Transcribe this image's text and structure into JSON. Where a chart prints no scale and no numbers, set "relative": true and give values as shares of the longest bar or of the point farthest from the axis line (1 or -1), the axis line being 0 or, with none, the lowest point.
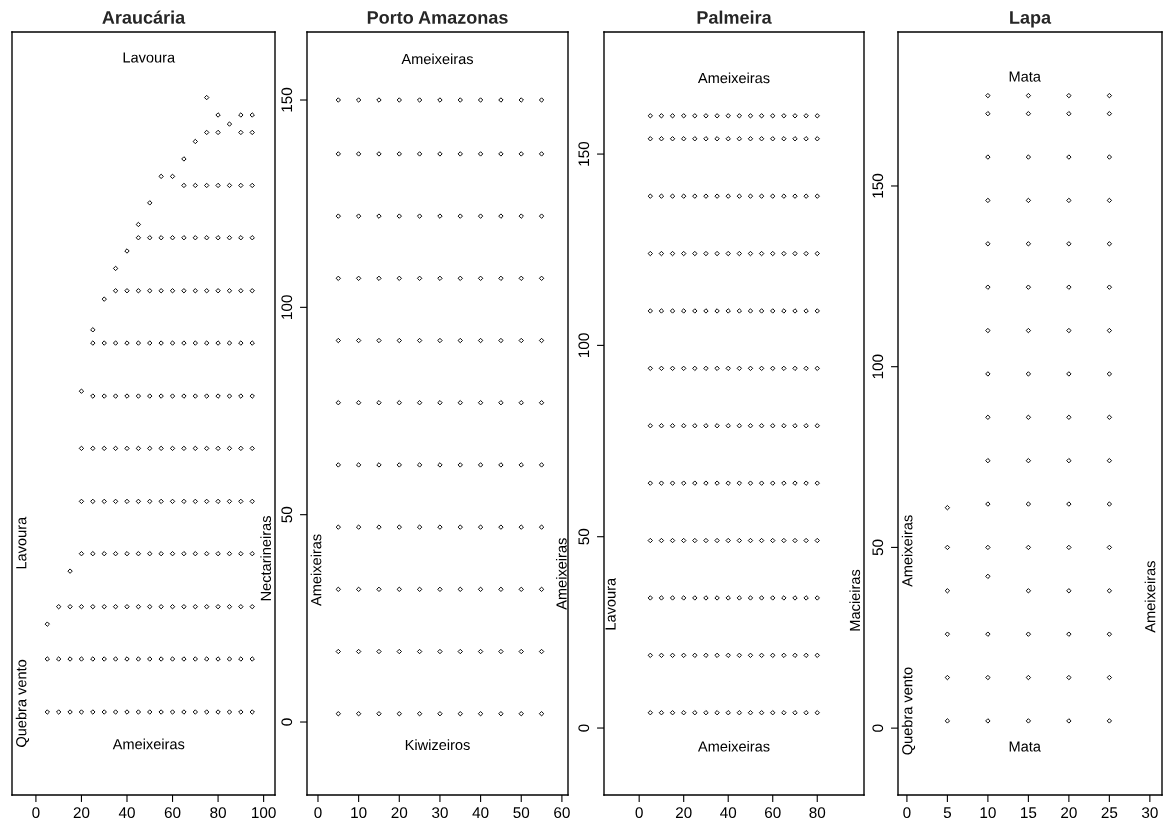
{
  "chart_data": [
    {
      "type": "scatter",
      "title": "Araucária",
      "xlim": [
        -10.5,
        105
      ],
      "xticks": [
        0,
        20,
        40,
        60,
        80,
        100
      ],
      "relative": true,
      "marker": "diamond",
      "annotations": [
        "Lavoura",
        "Ameixeiras",
        "Lavoura",
        "Quebra vento",
        "Nectarineiras"
      ],
      "series": [
        {
          "color": "#000000",
          "x": [
            5,
            5,
            5,
            10,
            10,
            10,
            15,
            15,
            15,
            15,
            20,
            20,
            20,
            20,
            20,
            20,
            20,
            25,
            25,
            25,
            25,
            25,
            25,
            25,
            25,
            25,
            30,
            30,
            30,
            30,
            30,
            30,
            30,
            30,
            30,
            35,
            35,
            35,
            35,
            35,
            35,
            35,
            35,
            35,
            35,
            40,
            40,
            40,
            40,
            40,
            40,
            40,
            40,
            40,
            40,
            45,
            45,
            45,
            45,
            45,
            45,
            45,
            45,
            45,
            45,
            45,
            50,
            50,
            50,
            50,
            50,
            50,
            50,
            50,
            50,
            50,
            50,
            55,
            55,
            55,
            55,
            55,
            55,
            55,
            55,
            55,
            55,
            55,
            60,
            60,
            60,
            60,
            60,
            60,
            60,
            60,
            60,
            60,
            60,
            65,
            65,
            65,
            65,
            65,
            65,
            65,
            65,
            65,
            65,
            65,
            65,
            70,
            70,
            70,
            70,
            70,
            70,
            70,
            70,
            70,
            70,
            70,
            70,
            75,
            75,
            75,
            75,
            75,
            75,
            75,
            75,
            75,
            75,
            75,
            75,
            75,
            80,
            80,
            80,
            80,
            80,
            80,
            80,
            80,
            80,
            80,
            80,
            80,
            80,
            85,
            85,
            85,
            85,
            85,
            85,
            85,
            85,
            85,
            85,
            85,
            85,
            90,
            90,
            90,
            90,
            90,
            90,
            90,
            90,
            90,
            90,
            90,
            90,
            90,
            95,
            95,
            95,
            95,
            95,
            95,
            95,
            95,
            95,
            95,
            95,
            95,
            95
          ],
          "values": [
            0.119,
            0.195,
            0.245,
            0.119,
            0.195,
            0.27,
            0.119,
            0.195,
            0.27,
            0.321,
            0.119,
            0.195,
            0.27,
            0.346,
            0.421,
            0.497,
            0.579,
            0.119,
            0.195,
            0.27,
            0.346,
            0.421,
            0.497,
            0.572,
            0.648,
            0.667,
            0.119,
            0.195,
            0.27,
            0.346,
            0.421,
            0.497,
            0.572,
            0.648,
            0.711,
            0.119,
            0.195,
            0.27,
            0.346,
            0.421,
            0.497,
            0.572,
            0.648,
            0.723,
            0.755,
            0.119,
            0.195,
            0.27,
            0.346,
            0.421,
            0.497,
            0.572,
            0.648,
            0.723,
            0.78,
            0.119,
            0.195,
            0.27,
            0.346,
            0.421,
            0.497,
            0.572,
            0.648,
            0.723,
            0.799,
            0.818,
            0.119,
            0.195,
            0.27,
            0.346,
            0.421,
            0.497,
            0.572,
            0.648,
            0.723,
            0.799,
            0.849,
            0.119,
            0.195,
            0.27,
            0.346,
            0.421,
            0.497,
            0.572,
            0.648,
            0.723,
            0.799,
            0.887,
            0.119,
            0.195,
            0.27,
            0.346,
            0.421,
            0.497,
            0.572,
            0.648,
            0.723,
            0.799,
            0.887,
            0.119,
            0.195,
            0.27,
            0.346,
            0.421,
            0.497,
            0.572,
            0.648,
            0.723,
            0.799,
            0.874,
            0.912,
            0.119,
            0.195,
            0.27,
            0.346,
            0.421,
            0.497,
            0.572,
            0.648,
            0.723,
            0.799,
            0.874,
            0.937,
            0.119,
            0.195,
            0.27,
            0.346,
            0.421,
            0.497,
            0.572,
            0.648,
            0.723,
            0.799,
            0.874,
            0.95,
            1,
            0.119,
            0.195,
            0.27,
            0.346,
            0.421,
            0.497,
            0.572,
            0.648,
            0.723,
            0.799,
            0.874,
            0.95,
            0.975,
            0.119,
            0.195,
            0.27,
            0.346,
            0.421,
            0.497,
            0.572,
            0.648,
            0.723,
            0.799,
            0.874,
            0.962,
            0.119,
            0.195,
            0.27,
            0.346,
            0.421,
            0.497,
            0.572,
            0.648,
            0.723,
            0.799,
            0.874,
            0.95,
            0.975,
            0.119,
            0.195,
            0.27,
            0.346,
            0.421,
            0.497,
            0.572,
            0.648,
            0.723,
            0.799,
            0.874,
            0.95,
            0.975
          ]
        }
      ]
    },
    {
      "type": "scatter",
      "title": "Porto Amazonas",
      "xlim": [
        -2.7,
        61.5
      ],
      "ylim": [
        -17.6,
        166.4
      ],
      "xticks": [
        0,
        10,
        20,
        30,
        40,
        50,
        60
      ],
      "yticks": [
        0,
        50,
        100,
        150
      ],
      "marker": "diamond",
      "annotations": [
        "Ameixeiras",
        "Kiwizeiros",
        "Ameixeiras",
        "Ameixeiras"
      ],
      "series": [
        {
          "color": "#000000",
          "x": [
            5,
            5,
            5,
            5,
            5,
            5,
            5,
            5,
            5,
            5,
            5,
            10,
            10,
            10,
            10,
            10,
            10,
            10,
            10,
            10,
            10,
            10,
            15,
            15,
            15,
            15,
            15,
            15,
            15,
            15,
            15,
            15,
            15,
            20,
            20,
            20,
            20,
            20,
            20,
            20,
            20,
            20,
            20,
            20,
            25,
            25,
            25,
            25,
            25,
            25,
            25,
            25,
            25,
            25,
            25,
            30,
            30,
            30,
            30,
            30,
            30,
            30,
            30,
            30,
            30,
            30,
            35,
            35,
            35,
            35,
            35,
            35,
            35,
            35,
            35,
            35,
            35,
            40,
            40,
            40,
            40,
            40,
            40,
            40,
            40,
            40,
            40,
            40,
            45,
            45,
            45,
            45,
            45,
            45,
            45,
            45,
            45,
            45,
            45,
            50,
            50,
            50,
            50,
            50,
            50,
            50,
            50,
            50,
            50,
            50,
            55,
            55,
            55,
            55,
            55,
            55,
            55,
            55,
            55,
            55,
            55
          ],
          "values": [
            2,
            17,
            32,
            47,
            62,
            77,
            92,
            107,
            122,
            137,
            150,
            2,
            17,
            32,
            47,
            62,
            77,
            92,
            107,
            122,
            137,
            150,
            2,
            17,
            32,
            47,
            62,
            77,
            92,
            107,
            122,
            137,
            150,
            2,
            17,
            32,
            47,
            62,
            77,
            92,
            107,
            122,
            137,
            150,
            2,
            17,
            32,
            47,
            62,
            77,
            92,
            107,
            122,
            137,
            150,
            2,
            17,
            32,
            47,
            62,
            77,
            92,
            107,
            122,
            137,
            150,
            2,
            17,
            32,
            47,
            62,
            77,
            92,
            107,
            122,
            137,
            150,
            2,
            17,
            32,
            47,
            62,
            77,
            92,
            107,
            122,
            137,
            150,
            2,
            17,
            32,
            47,
            62,
            77,
            92,
            107,
            122,
            137,
            150,
            2,
            17,
            32,
            47,
            62,
            77,
            92,
            107,
            122,
            137,
            150,
            2,
            17,
            32,
            47,
            62,
            77,
            92,
            107,
            122,
            137,
            150
          ]
        }
      ]
    },
    {
      "type": "scatter",
      "title": "Palmeira",
      "xlim": [
        -15.8,
        101
      ],
      "ylim": [
        -17.5,
        181.9
      ],
      "xticks": [
        0,
        20,
        40,
        60,
        80
      ],
      "yticks": [
        0,
        50,
        100,
        150
      ],
      "marker": "diamond",
      "annotations": [
        "Ameixeiras",
        "Ameixeiras",
        "Lavoura",
        "Macieiras"
      ],
      "series": [
        {
          "color": "#000000",
          "x": [
            5,
            5,
            5,
            5,
            5,
            5,
            5,
            5,
            5,
            5,
            5,
            5,
            10,
            10,
            10,
            10,
            10,
            10,
            10,
            10,
            10,
            10,
            10,
            10,
            15,
            15,
            15,
            15,
            15,
            15,
            15,
            15,
            15,
            15,
            15,
            15,
            20,
            20,
            20,
            20,
            20,
            20,
            20,
            20,
            20,
            20,
            20,
            20,
            25,
            25,
            25,
            25,
            25,
            25,
            25,
            25,
            25,
            25,
            25,
            25,
            30,
            30,
            30,
            30,
            30,
            30,
            30,
            30,
            30,
            30,
            30,
            30,
            35,
            35,
            35,
            35,
            35,
            35,
            35,
            35,
            35,
            35,
            35,
            35,
            40,
            40,
            40,
            40,
            40,
            40,
            40,
            40,
            40,
            40,
            40,
            40,
            45,
            45,
            45,
            45,
            45,
            45,
            45,
            45,
            45,
            45,
            45,
            45,
            50,
            50,
            50,
            50,
            50,
            50,
            50,
            50,
            50,
            50,
            50,
            50,
            55,
            55,
            55,
            55,
            55,
            55,
            55,
            55,
            55,
            55,
            55,
            55,
            60,
            60,
            60,
            60,
            60,
            60,
            60,
            60,
            60,
            60,
            60,
            60,
            65,
            65,
            65,
            65,
            65,
            65,
            65,
            65,
            65,
            65,
            65,
            65,
            70,
            70,
            70,
            70,
            70,
            70,
            70,
            70,
            70,
            70,
            70,
            70,
            75,
            75,
            75,
            75,
            75,
            75,
            75,
            75,
            75,
            75,
            75,
            75,
            80,
            80,
            80,
            80,
            80,
            80,
            80,
            80,
            80,
            80,
            80,
            80
          ],
          "values": [
            4,
            19,
            34,
            49,
            64,
            79,
            94,
            109,
            124,
            139,
            154,
            160,
            4,
            19,
            34,
            49,
            64,
            79,
            94,
            109,
            124,
            139,
            154,
            160,
            4,
            19,
            34,
            49,
            64,
            79,
            94,
            109,
            124,
            139,
            154,
            160,
            4,
            19,
            34,
            49,
            64,
            79,
            94,
            109,
            124,
            139,
            154,
            160,
            4,
            19,
            34,
            49,
            64,
            79,
            94,
            109,
            124,
            139,
            154,
            160,
            4,
            19,
            34,
            49,
            64,
            79,
            94,
            109,
            124,
            139,
            154,
            160,
            4,
            19,
            34,
            49,
            64,
            79,
            94,
            109,
            124,
            139,
            154,
            160,
            4,
            19,
            34,
            49,
            64,
            79,
            94,
            109,
            124,
            139,
            154,
            160,
            4,
            19,
            34,
            49,
            64,
            79,
            94,
            109,
            124,
            139,
            154,
            160,
            4,
            19,
            34,
            49,
            64,
            79,
            94,
            109,
            124,
            139,
            154,
            160,
            4,
            19,
            34,
            49,
            64,
            79,
            94,
            109,
            124,
            139,
            154,
            160,
            4,
            19,
            34,
            49,
            64,
            79,
            94,
            109,
            124,
            139,
            154,
            160,
            4,
            19,
            34,
            49,
            64,
            79,
            94,
            109,
            124,
            139,
            154,
            160,
            4,
            19,
            34,
            49,
            64,
            79,
            94,
            109,
            124,
            139,
            154,
            160,
            4,
            19,
            34,
            49,
            64,
            79,
            94,
            109,
            124,
            139,
            154,
            160,
            4,
            19,
            34,
            49,
            64,
            79,
            94,
            109,
            124,
            139,
            154,
            160
          ]
        }
      ]
    },
    {
      "type": "scatter",
      "title": "Lapa",
      "xlim": [
        -1.1,
        31.5
      ],
      "ylim": [
        -18.5,
        192.6
      ],
      "xticks": [
        0,
        5,
        10,
        15,
        20,
        25,
        30
      ],
      "yticks": [
        0,
        50,
        100,
        150
      ],
      "marker": "diamond",
      "annotations": [
        "Mata",
        "Mata",
        "Ameixeiras",
        "Quebra vento",
        "Ameixeiras"
      ],
      "series": [
        {
          "color": "#000000",
          "x": [
            5,
            5,
            5,
            5,
            5,
            5,
            10,
            10,
            10,
            10,
            10,
            10,
            10,
            10,
            10,
            10,
            10,
            10,
            10,
            10,
            10,
            10,
            15,
            15,
            15,
            15,
            15,
            15,
            15,
            15,
            15,
            15,
            15,
            15,
            15,
            15,
            15,
            15,
            20,
            20,
            20,
            20,
            20,
            20,
            20,
            20,
            20,
            20,
            20,
            20,
            20,
            20,
            20,
            20,
            25,
            25,
            25,
            25,
            25,
            25,
            25,
            25,
            25,
            25,
            25,
            25,
            25,
            25,
            25,
            25
          ],
          "values": [
            2,
            14,
            26,
            38,
            50,
            61,
            2,
            14,
            26,
            42,
            50,
            62,
            74,
            86,
            98,
            110,
            122,
            134,
            146,
            158,
            170,
            175,
            2,
            14,
            26,
            38,
            50,
            62,
            74,
            86,
            98,
            110,
            122,
            134,
            146,
            158,
            170,
            175,
            2,
            14,
            26,
            38,
            50,
            62,
            74,
            86,
            98,
            110,
            122,
            134,
            146,
            158,
            170,
            175,
            2,
            14,
            26,
            38,
            50,
            62,
            74,
            86,
            98,
            110,
            122,
            134,
            146,
            158,
            170,
            175
          ]
        }
      ]
    }
  ]
}
